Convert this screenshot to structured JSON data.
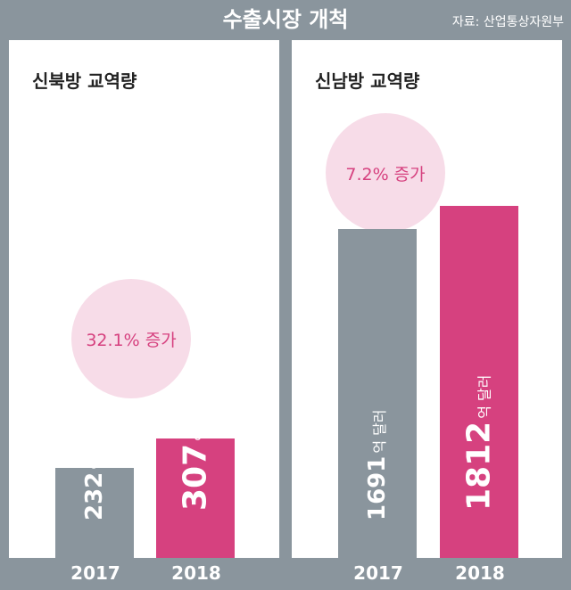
{
  "title": "수출시장 개척",
  "source": "자료: 산업통상자원부",
  "colors": {
    "bar_2017": "#8a959d",
    "bar_2018": "#d6417f",
    "bubble": "#f7dce8",
    "accent": "#d6417f"
  },
  "chart_data": [
    {
      "type": "bar",
      "title": "신북방 교역량",
      "categories": [
        "2017",
        "2018"
      ],
      "values": [
        232,
        307
      ],
      "value_labels": [
        "232억 달러",
        "307억 달러"
      ],
      "unit": "억 달러",
      "annotation": "32.1% 증가"
    },
    {
      "type": "bar",
      "title": "신남방 교역량",
      "categories": [
        "2017",
        "2018"
      ],
      "values": [
        1691,
        1812
      ],
      "value_labels": [
        "1691억 달러",
        "1812억 달러"
      ],
      "unit": "억 달러",
      "annotation": "7.2% 증가"
    }
  ]
}
